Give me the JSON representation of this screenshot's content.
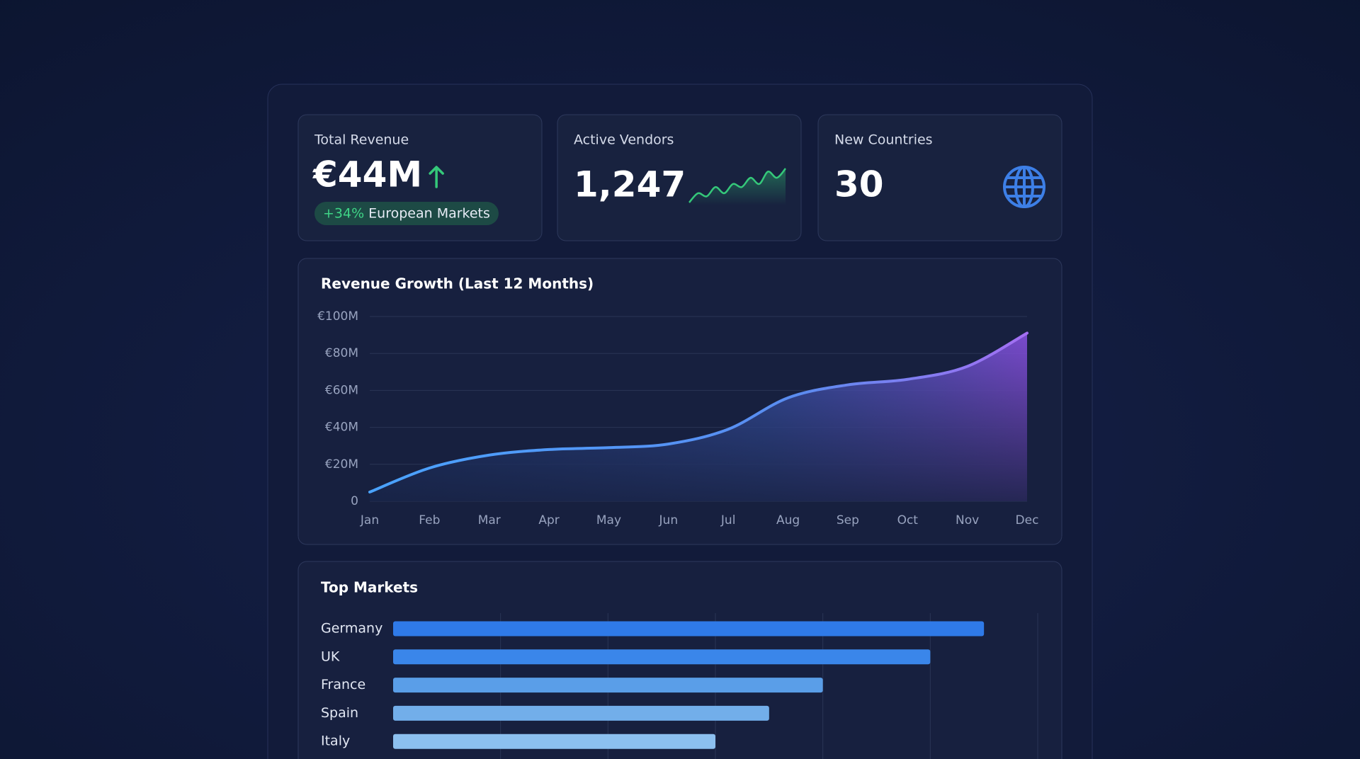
{
  "kpis": [
    {
      "label": "Total Revenue",
      "value": "€44M",
      "badge_change": "+34%",
      "badge_text": "European Markets"
    },
    {
      "label": "Active Vendors",
      "value": "1,247",
      "sparkline": [
        2,
        5,
        4,
        7,
        5,
        8,
        7,
        10,
        8,
        12,
        10,
        13
      ]
    },
    {
      "label": "New Countries",
      "value": "30"
    }
  ],
  "chart_data": [
    {
      "type": "area",
      "title": "Revenue Growth (Last 12 Months)",
      "categories": [
        "Jan",
        "Feb",
        "Mar",
        "Apr",
        "May",
        "Jun",
        "Jul",
        "Aug",
        "Sep",
        "Oct",
        "Nov",
        "Dec"
      ],
      "values": [
        5,
        18,
        25,
        28,
        29,
        31,
        39,
        56,
        63,
        66,
        73,
        91
      ],
      "color": "#4a9af0",
      "ylim": [
        0,
        100
      ],
      "yticks": [
        0,
        {
          "value": 20,
          "label": "€20M"
        },
        {
          "value": 40,
          "label": "€40M"
        },
        {
          "value": 60,
          "label": "€60M"
        },
        {
          "value": 80,
          "label": "€80M"
        },
        {
          "value": 100,
          "label": "€100M"
        }
      ],
      "grid": true
    },
    {
      "type": "hbar",
      "title": "Top Markets",
      "categories": [
        "Germany",
        "UK",
        "France",
        "Spain",
        "Italy"
      ],
      "values": [
        5.5,
        5,
        4,
        3.5,
        3
      ],
      "colors": [
        "#2f7ae8",
        "#3a86ea",
        "#5a9ee8",
        "#72aeea",
        "#8cc0f0"
      ],
      "xlim": [
        0,
        6
      ],
      "xticks": [
        1,
        2,
        3,
        4,
        5,
        6
      ],
      "grid": true
    }
  ]
}
